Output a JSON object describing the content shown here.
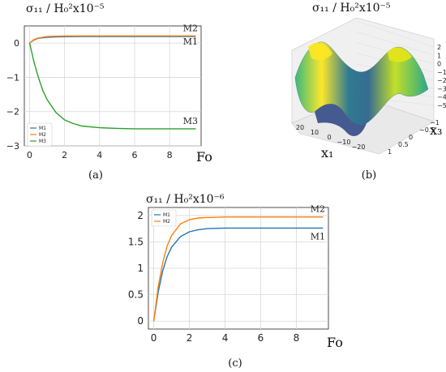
{
  "panels": {
    "a": {
      "caption": "(a)",
      "title": "σ₁₁ / H₀²x10⁻⁵",
      "xlabel": "Fo"
    },
    "b": {
      "caption": "(b)",
      "title": "σ₁₁ / H₀²x10⁻⁵",
      "xlabel": "x₁",
      "ylabel": "x₃"
    },
    "c": {
      "caption": "(c)",
      "title": "σ₁₁ / H₀²x10⁻⁶",
      "xlabel": "Fo"
    }
  },
  "chart_data": [
    {
      "id": "a",
      "type": "line",
      "title": "σ₁₁ / H₀²x10⁻⁵",
      "xlabel": "Fo",
      "ylabel": "",
      "xlim": [
        -0.3,
        9.8
      ],
      "ylim": [
        -3.0,
        0.5
      ],
      "xticks": [
        0,
        2,
        4,
        6,
        8
      ],
      "yticks": [
        0,
        -1,
        -2,
        -3
      ],
      "grid": true,
      "legend": "bottom-left",
      "series": [
        {
          "name": "M1",
          "color": "#1f77b4",
          "label": "M1",
          "x": [
            0,
            0.25,
            0.5,
            1,
            1.5,
            2,
            3,
            4,
            6,
            8,
            9.5
          ],
          "y": [
            0,
            0.09,
            0.14,
            0.17,
            0.18,
            0.185,
            0.19,
            0.19,
            0.19,
            0.19,
            0.19
          ]
        },
        {
          "name": "M2",
          "color": "#ff7f0e",
          "label": "M2",
          "x": [
            0,
            0.25,
            0.5,
            1,
            1.5,
            2,
            3,
            4,
            6,
            8,
            9.5
          ],
          "y": [
            0,
            0.1,
            0.15,
            0.19,
            0.2,
            0.205,
            0.21,
            0.21,
            0.21,
            0.21,
            0.21
          ]
        },
        {
          "name": "M3",
          "color": "#2ca02c",
          "label": "M3",
          "x": [
            0,
            0.25,
            0.5,
            0.75,
            1,
            1.5,
            2,
            2.5,
            3,
            4,
            5,
            6,
            8,
            9.5
          ],
          "y": [
            0,
            -0.55,
            -1.0,
            -1.38,
            -1.65,
            -2.02,
            -2.24,
            -2.35,
            -2.42,
            -2.47,
            -2.49,
            -2.5,
            -2.5,
            -2.5
          ]
        }
      ]
    },
    {
      "id": "b",
      "type": "surface",
      "title": "σ₁₁ / H₀²x10⁻⁵",
      "xlabel": "x₁",
      "ylabel": "x₃",
      "colormap": "viridis",
      "x_ticks": [
        20,
        10,
        0,
        -10,
        -20
      ],
      "y_ticks": [
        1,
        0.5,
        0,
        -0.5,
        -1
      ],
      "z_ticks": [
        2,
        1,
        0,
        -1,
        -2,
        -3,
        -4,
        -5
      ],
      "zlim": [
        -5,
        2
      ]
    },
    {
      "id": "c",
      "type": "line",
      "title": "σ₁₁ / H₀²x10⁻⁶",
      "xlabel": "Fo",
      "ylabel": "",
      "xlim": [
        -0.3,
        9.8
      ],
      "ylim": [
        -0.15,
        2.15
      ],
      "xticks": [
        0,
        2,
        4,
        6,
        8
      ],
      "yticks": [
        0,
        0.5,
        1,
        1.5,
        2
      ],
      "ytick_labels": [
        "0",
        "0.5",
        "1",
        "1.5",
        "2"
      ],
      "grid": true,
      "legend": "top-left",
      "series": [
        {
          "name": "M1",
          "color": "#1f77b4",
          "label": "M1",
          "x": [
            0,
            0.25,
            0.5,
            0.75,
            1,
            1.5,
            2,
            2.5,
            3,
            4,
            5,
            6,
            8,
            9.5
          ],
          "y": [
            0,
            0.55,
            0.95,
            1.22,
            1.4,
            1.6,
            1.69,
            1.73,
            1.75,
            1.76,
            1.76,
            1.76,
            1.76,
            1.76
          ]
        },
        {
          "name": "M2",
          "color": "#ff7f0e",
          "label": "M2",
          "x": [
            0,
            0.25,
            0.5,
            0.75,
            1,
            1.5,
            2,
            2.5,
            3,
            4,
            5,
            6,
            8,
            9.5
          ],
          "y": [
            0,
            0.65,
            1.1,
            1.42,
            1.62,
            1.84,
            1.92,
            1.95,
            1.96,
            1.97,
            1.97,
            1.97,
            1.97,
            1.97
          ]
        }
      ]
    }
  ]
}
